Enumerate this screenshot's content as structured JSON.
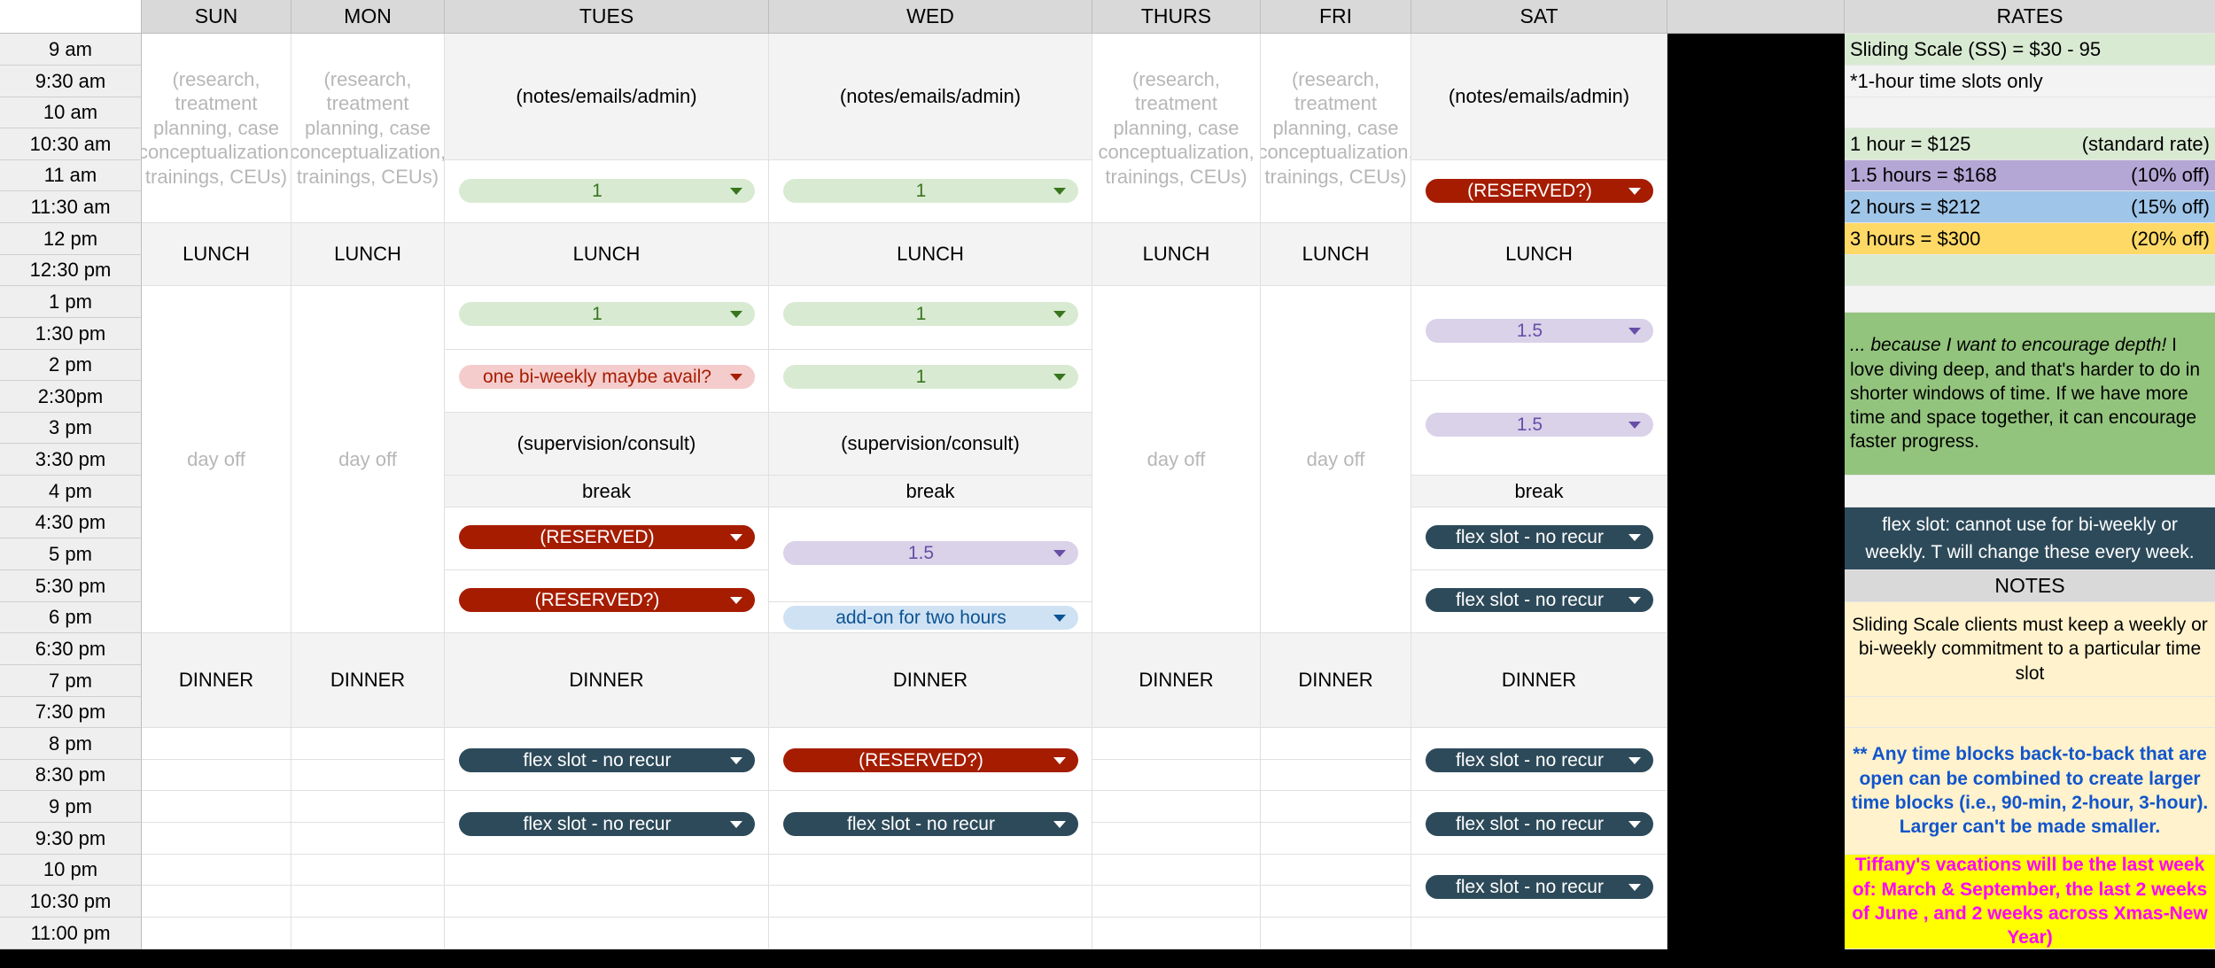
{
  "days": [
    "SUN",
    "MON",
    "TUES",
    "WED",
    "THURS",
    "FRI",
    "SAT"
  ],
  "times": [
    "9 am",
    "9:30 am",
    "10 am",
    "10:30 am",
    "11 am",
    "11:30 am",
    "12 pm",
    "12:30 pm",
    "1 pm",
    "1:30 pm",
    "2 pm",
    "2:30pm",
    "3 pm",
    "3:30 pm",
    "4 pm",
    "4:30 pm",
    "5 pm",
    "5:30 pm",
    "6 pm",
    "6:30 pm",
    "7 pm",
    "7:30 pm",
    "8 pm",
    "8:30 pm",
    "9 pm",
    "9:30 pm",
    "10 pm",
    "10:30 pm",
    "11:00 pm"
  ],
  "cells": {
    "research": "(research, treatment planning, case conceptualization, trainings, CEUs)",
    "admin": "(notes/emails/admin)",
    "lunch": "LUNCH",
    "dinner": "DINNER",
    "day_off": "day off",
    "supervision": "(supervision/consult)",
    "break": "break"
  },
  "chips": {
    "one": "1",
    "reserved_q": "(RESERVED?)",
    "reserved": "(RESERVED)",
    "biweekly": "one bi-weekly maybe avail?",
    "one_half": "1.5",
    "addon": "add-on for two hours",
    "flex": "flex slot - no recur"
  },
  "colors": {
    "green": "#d9ead3",
    "red": "#a61c00",
    "pink": "#f4cccc",
    "purple": "#d9d2e9",
    "blue": "#cfe2f3",
    "slate": "#2d4a5a",
    "orange": "#ffd966",
    "sage": "#93c47d",
    "cream": "#fff2cc",
    "yellow": "#ffff00",
    "magenta": "#ff00ff"
  },
  "rates": {
    "header": "RATES",
    "sliding_scale": "Sliding Scale (SS) = $30 - 95",
    "one_hour_only": "*1-hour time slots only",
    "r1_left": "1 hour = $125",
    "r1_right": "(standard rate)",
    "r2_left": "1.5 hours = $168",
    "r2_right": "(10% off)",
    "r3_left": "2 hours = $212",
    "r3_right": "(15% off)",
    "r4_left": "3 hours = $300",
    "r4_right": "(20% off)",
    "depth_em": "... because I want to encourage depth!",
    "depth_rest": " I love diving deep, and that's harder to do in shorter windows of time. If we have more time and space together, it can encourage faster progress.",
    "flex_note": "flex slot: cannot use for bi-weekly or weekly. T will change these every week.",
    "notes_header": "NOTES",
    "ss_note": "Sliding Scale clients must keep a weekly or bi-weekly commitment to a particular time slot",
    "blocks_note": "** Any time blocks back-to-back that are open can be combined to create larger time blocks (i.e., 90-min, 2-hour, 3-hour). Larger can't be made smaller.",
    "vacation_note": "Tiffany's vacations will be the last week of: March & September, the last 2 weeks of June , and 2 weeks across Xmas-New Year)"
  }
}
